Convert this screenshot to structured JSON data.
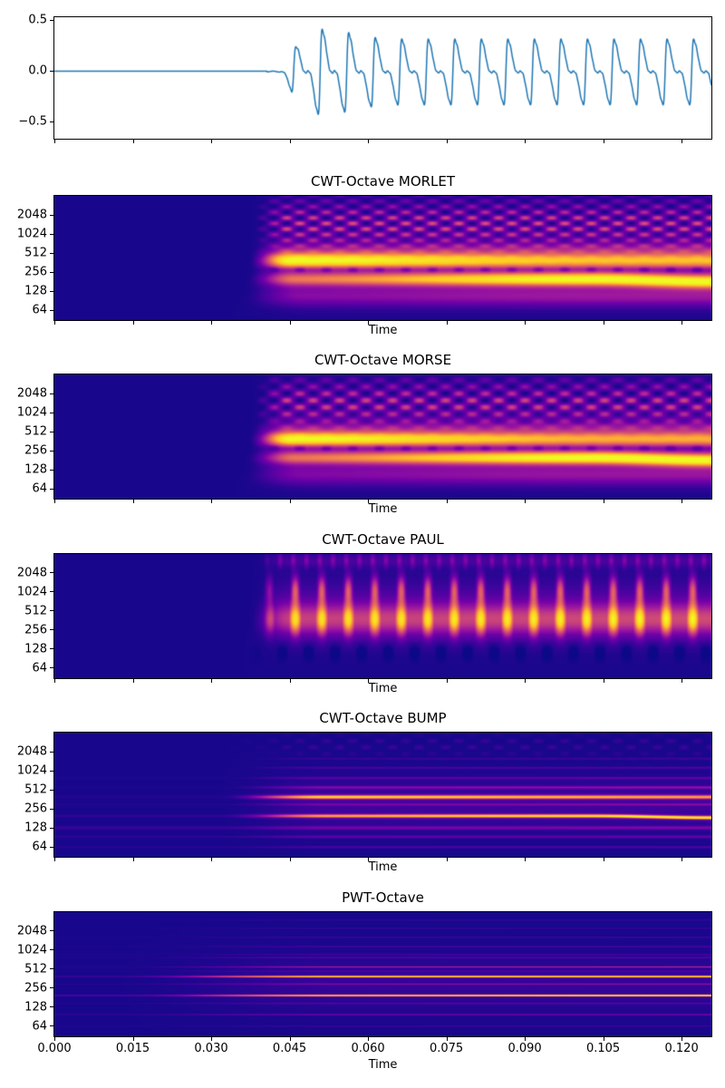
{
  "figure": {
    "background": "#ffffff",
    "spine_color": "#000000",
    "waveform_line_color": "#1f77b4",
    "colormap": "plasma",
    "colormap_min_hex": "#0d0887",
    "colormap_max_hex": "#f0f921"
  },
  "x_axis": {
    "label": "Time",
    "tick_labels": [
      "0.000",
      "0.015",
      "0.030",
      "0.045",
      "0.060",
      "0.075",
      "0.090",
      "0.105",
      "0.120"
    ],
    "tick_values": [
      0,
      0.015,
      0.03,
      0.045,
      0.06,
      0.075,
      0.09,
      0.105,
      0.12
    ],
    "xlim": [
      0,
      0.1257
    ]
  },
  "chart_data": [
    {
      "id": "waveform",
      "type": "line",
      "title": "",
      "xlabel": "",
      "line_color": "#1f77b4",
      "xlim": [
        0,
        0.1257
      ],
      "ylim": [
        -0.665,
        0.53
      ],
      "yticks": {
        "values": [
          0.5,
          0.0,
          -0.5
        ],
        "labels": [
          "0.5",
          "0.0",
          "−0.5"
        ]
      },
      "signal": {
        "description": "silence until onset, then periodic sawtooth-like tone",
        "onset_time_s": 0.0407,
        "fundamental_hz": 197,
        "harmonic_amplitudes": [
          1,
          0.85,
          0.33,
          0.2,
          0.14,
          0.1,
          0.06,
          0.05
        ],
        "amplitude_scale": 0.185,
        "steady_peak": 0.36,
        "max_early_excursion": -0.5
      }
    },
    {
      "id": "cwt-morlet",
      "type": "heatmap",
      "title": "CWT-Octave MORLET",
      "xlabel": "Time",
      "yticks": {
        "values": [
          2048,
          1024,
          512,
          256,
          128,
          64
        ],
        "labels": [
          "2048",
          "1024",
          "512",
          "256",
          "128",
          "64"
        ]
      },
      "freq_range_hz": [
        45,
        4096
      ],
      "scale": "log2",
      "colormap": "plasma",
      "render": {
        "style": "cwt",
        "f0": 197,
        "onset": 0.041,
        "bands": [
          {
            "f": 394,
            "w": 0.4,
            "a0": 0.88,
            "a1": 0.62
          },
          {
            "f": 197,
            "w": 0.34,
            "a0": 0.42,
            "a1": 0.9,
            "drift": 0.08
          },
          {
            "f": 600,
            "w": 0.3,
            "a0": 0.1,
            "a1": 0.14
          },
          {
            "f": 105,
            "w": 0.5,
            "a0": 0.16,
            "a1": 0.22
          }
        ],
        "bg": [
          {
            "f": 260,
            "w": 1.5,
            "a": 0.13
          },
          {
            "f": 1100,
            "w": 1.9,
            "a": 0.06
          }
        ],
        "speckle": {
          "center": 1500,
          "w": 1.15,
          "base": 0.1,
          "amp": 0.3,
          "kf": 10.5
        },
        "darkrow": {
          "f": 280,
          "w": 0.14,
          "a": 0.2
        }
      }
    },
    {
      "id": "cwt-morse",
      "type": "heatmap",
      "title": "CWT-Octave MORSE",
      "xlabel": "Time",
      "yticks": {
        "values": [
          2048,
          1024,
          512,
          256,
          128,
          64
        ],
        "labels": [
          "2048",
          "1024",
          "512",
          "256",
          "128",
          "64"
        ]
      },
      "freq_range_hz": [
        45,
        4096
      ],
      "scale": "log2",
      "colormap": "plasma",
      "render": {
        "style": "cwt",
        "f0": 197,
        "onset": 0.041,
        "bands": [
          {
            "f": 394,
            "w": 0.38,
            "a0": 0.88,
            "a1": 0.58
          },
          {
            "f": 197,
            "w": 0.33,
            "a0": 0.42,
            "a1": 0.92,
            "drift": 0.08
          },
          {
            "f": 600,
            "w": 0.3,
            "a0": 0.1,
            "a1": 0.13
          },
          {
            "f": 105,
            "w": 0.5,
            "a0": 0.15,
            "a1": 0.21
          }
        ],
        "bg": [
          {
            "f": 260,
            "w": 1.5,
            "a": 0.12
          },
          {
            "f": 1100,
            "w": 1.9,
            "a": 0.06
          }
        ],
        "speckle": {
          "center": 1500,
          "w": 1.1,
          "base": 0.09,
          "amp": 0.28,
          "kf": 8.5
        },
        "darkrow": {
          "f": 280,
          "w": 0.14,
          "a": 0.18
        }
      }
    },
    {
      "id": "cwt-paul",
      "type": "heatmap",
      "title": "CWT-Octave PAUL",
      "xlabel": "Time",
      "yticks": {
        "values": [
          2048,
          1024,
          512,
          256,
          128,
          64
        ],
        "labels": [
          "2048",
          "1024",
          "512",
          "256",
          "128",
          "64"
        ]
      },
      "freq_range_hz": [
        45,
        4096
      ],
      "scale": "log2",
      "colormap": "plasma",
      "render": {
        "style": "paul",
        "f0": 197,
        "onset": 0.041,
        "band": {
          "f": 380,
          "w": 0.78,
          "a": 0.88
        },
        "plume": {
          "f": 1100,
          "w": 0.75,
          "a": 0.42
        },
        "top": {
          "f": 3300,
          "w": 0.38,
          "a": 0.26
        }
      }
    },
    {
      "id": "cwt-bump",
      "type": "heatmap",
      "title": "CWT-Octave BUMP",
      "xlabel": "Time",
      "yticks": {
        "values": [
          2048,
          1024,
          512,
          256,
          128,
          64
        ],
        "labels": [
          "2048",
          "1024",
          "512",
          "256",
          "128",
          "64"
        ]
      },
      "freq_range_hz": [
        45,
        4096
      ],
      "scale": "log2",
      "colormap": "plasma",
      "render": {
        "style": "lines",
        "f0": 197,
        "onset": 0.032,
        "soft": 0.02,
        "lines": [
          {
            "f": 394,
            "w": 0.1,
            "pre": 0.02,
            "a0": 0.88,
            "a1": 0.62
          },
          {
            "f": 197,
            "w": 0.09,
            "pre": 0.04,
            "a0": 0.42,
            "a1": 0.92,
            "drift": 0.06
          },
          {
            "f": 560,
            "w": 0.07,
            "pre": 0.01,
            "a0": 0.16,
            "a1": 0.22
          },
          {
            "f": 300,
            "w": 0.06,
            "pre": 0.02,
            "a0": 0.1,
            "a1": 0.16
          },
          {
            "f": 128,
            "w": 0.09,
            "pre": 0.06,
            "a0": 0.1,
            "a1": 0.13
          },
          {
            "f": 92,
            "w": 0.07,
            "pre": 0.04,
            "a0": 0.08,
            "a1": 0.1
          },
          {
            "f": 790,
            "w": 0.06,
            "pre": 0.01,
            "a0": 0.09,
            "a1": 0.12
          },
          {
            "f": 1150,
            "w": 0.06,
            "pre": 0.0,
            "a0": 0.07,
            "a1": 0.09
          },
          {
            "f": 63,
            "w": 0.06,
            "pre": 0.03,
            "a0": 0.05,
            "a1": 0.07
          },
          {
            "f": 1600,
            "w": 0.05,
            "pre": 0.0,
            "a0": 0.05,
            "a1": 0.07
          }
        ],
        "bg": [
          {
            "f": 300,
            "w": 1.3,
            "a": 0.07
          }
        ],
        "checker": {
          "center": 2600,
          "w": 0.55,
          "a": 0.06,
          "kf": 9
        }
      }
    },
    {
      "id": "pwt",
      "type": "heatmap",
      "title": "PWT-Octave",
      "xlabel": "Time",
      "yticks": {
        "values": [
          2048,
          1024,
          512,
          256,
          128,
          64
        ],
        "labels": [
          "2048",
          "1024",
          "512",
          "256",
          "128",
          "64"
        ]
      },
      "freq_range_hz": [
        45,
        4096
      ],
      "scale": "log2",
      "colormap": "plasma",
      "render": {
        "style": "lines",
        "f0": 197,
        "onset": 0.012,
        "soft": 0.042,
        "lines": [
          {
            "f": 394,
            "w": 0.045,
            "pre": 0.06,
            "a0": 0.8,
            "a1": 0.88
          },
          {
            "f": 197,
            "w": 0.045,
            "pre": 0.1,
            "a0": 0.65,
            "a1": 0.92
          },
          {
            "f": 560,
            "w": 0.035,
            "pre": 0.02,
            "a0": 0.22,
            "a1": 0.28
          },
          {
            "f": 300,
            "w": 0.035,
            "pre": 0.03,
            "a0": 0.14,
            "a1": 0.18
          },
          {
            "f": 98,
            "w": 0.035,
            "pre": 0.05,
            "a0": 0.12,
            "a1": 0.15
          },
          {
            "f": 147,
            "w": 0.03,
            "pre": 0.03,
            "a0": 0.08,
            "a1": 0.11
          },
          {
            "f": 790,
            "w": 0.03,
            "pre": 0.02,
            "a0": 0.1,
            "a1": 0.13
          },
          {
            "f": 1180,
            "w": 0.03,
            "pre": 0.01,
            "a0": 0.08,
            "a1": 0.11
          },
          {
            "f": 1650,
            "w": 0.03,
            "pre": 0.01,
            "a0": 0.07,
            "a1": 0.09
          },
          {
            "f": 2300,
            "w": 0.03,
            "pre": 0.0,
            "a0": 0.06,
            "a1": 0.08
          },
          {
            "f": 3100,
            "w": 0.03,
            "pre": 0.0,
            "a0": 0.05,
            "a1": 0.07
          },
          {
            "f": 64,
            "w": 0.03,
            "pre": 0.02,
            "a0": 0.05,
            "a1": 0.06
          },
          {
            "f": 480,
            "w": 0.03,
            "pre": 0.01,
            "a0": 0.07,
            "a1": 0.09
          },
          {
            "f": 880,
            "w": 0.03,
            "pre": 0.01,
            "a0": 0.06,
            "a1": 0.08
          }
        ],
        "bg": [
          {
            "f": 300,
            "w": 1.4,
            "a": 0.05
          }
        ]
      }
    }
  ]
}
